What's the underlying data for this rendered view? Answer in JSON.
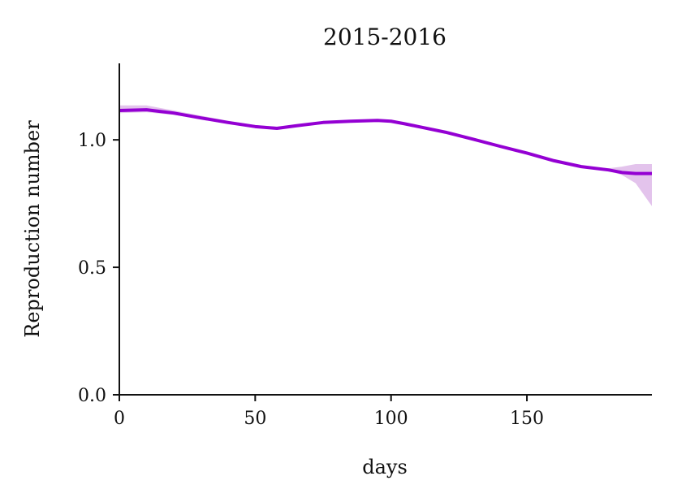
{
  "chart_data": {
    "type": "line",
    "title": "2015-2016",
    "xlabel": "days",
    "ylabel": "Reproduction number",
    "xlim": [
      0,
      196
    ],
    "ylim": [
      0,
      1.3
    ],
    "xticks": [
      0,
      50,
      100,
      150
    ],
    "yticks": [
      0.0,
      0.5,
      1.0
    ],
    "xtick_labels": [
      "0",
      "50",
      "100",
      "150"
    ],
    "ytick_labels": [
      "0.0",
      "0.5",
      "1.0"
    ],
    "grid": false,
    "series": [
      {
        "color": "#9400d3",
        "band_color": "#e3c3ec",
        "x": [
          0,
          10,
          20,
          30,
          40,
          50,
          58,
          65,
          75,
          85,
          95,
          100,
          105,
          110,
          120,
          130,
          140,
          150,
          160,
          170,
          180,
          185,
          190,
          196
        ],
        "y": [
          1.115,
          1.118,
          1.105,
          1.086,
          1.068,
          1.052,
          1.045,
          1.055,
          1.068,
          1.073,
          1.076,
          1.073,
          1.063,
          1.052,
          1.03,
          1.003,
          0.975,
          0.948,
          0.918,
          0.895,
          0.882,
          0.872,
          0.868,
          0.868
        ],
        "lower": [
          1.105,
          1.108,
          1.098,
          1.082,
          1.064,
          1.048,
          1.042,
          1.052,
          1.066,
          1.071,
          1.074,
          1.071,
          1.061,
          1.05,
          1.028,
          1.001,
          0.973,
          0.946,
          0.916,
          0.893,
          0.878,
          0.862,
          0.83,
          0.74
        ],
        "upper": [
          1.135,
          1.135,
          1.115,
          1.095,
          1.075,
          1.058,
          1.051,
          1.06,
          1.072,
          1.077,
          1.08,
          1.077,
          1.067,
          1.056,
          1.034,
          1.007,
          0.979,
          0.952,
          0.922,
          0.899,
          0.888,
          0.895,
          0.905,
          0.905
        ]
      }
    ]
  }
}
